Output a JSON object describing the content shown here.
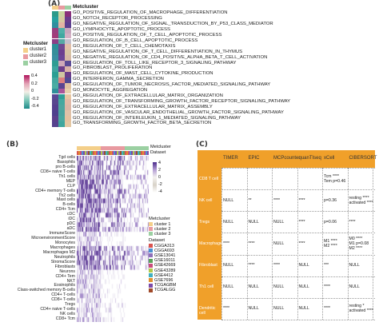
{
  "panel_a": {
    "letter": "(A)",
    "legend_title": "Metcluster",
    "legend_items": [
      {
        "label": "cluster1",
        "color": "#f4cf89"
      },
      {
        "label": "cluster2",
        "color": "#e89aa0"
      },
      {
        "label": "cluster3",
        "color": "#9bd0a2"
      }
    ],
    "scale_ticks": [
      "0.4",
      "0.2",
      "0",
      "-0.2",
      "-0.4"
    ],
    "annotation_label": "Metcluster",
    "cluster_colors": [
      "#f4cf89",
      "#e89aa0",
      "#9bd0a2"
    ],
    "go_terms": [
      "GO_POSITIVE_REGULATION_OF_MACROPHAGE_DIFFERENTIATION",
      "GO_NOTCH_RECEPTOR_PROCESSING",
      "GO_NEGATIVE_REGULATION_OF_SIGNAL_TRANSDUCTION_BY_P53_CLASS_MEDIATOR",
      "GO_LYMPHOCYTE_APOPTOTIC_PROCESS",
      "GO_POSITIVE_REGULATION_OF_T_CELL_APOPTOTIC_PROCESS",
      "GO_REGULATION_OF_B_CELL_APOPTOTIC_PROCESS",
      "GO_REGULATION_OF_T_CELL_CHEMOTAXIS",
      "GO_NEGATIVE_REGULATION_OF_T_CELL_DIFFERENTIATION_IN_THYMUS",
      "GO_NEGATIVE_REGULATION_OF_CD4_POSITIVE_ALPHA_BETA_T_CELL_ACTIVATION",
      "GO_REGULATION_OF_TOLL_LIKE_RECEPTOR_3_SIGNALING_PATHWAY",
      "GO_FIBROBLAST_PROLIFERATION",
      "GO_REGULATION_OF_MAST_CELL_CYTOKINE_PRODUCTION",
      "GO_INTERFERON_GAMMA_SECRETION",
      "GO_REGULATION_OF_TUMOR_NECROSIS_FACTOR_MEDIATED_SIGNALING_PATHWAY",
      "GO_MONOCYTE_AGGREGATION",
      "GO_REGULATION_OF_EXTRACELLULAR_MATRIX_ORGANIZATION",
      "GO_REGULATION_OF_TRANSFORMING_GROWTH_FACTOR_RECEPTOR_SIGNALING_PATHWAY",
      "GO_REGULATION_OF_EXTRACELLULAR_MATRIX_ASSEMBLY",
      "GO_REGULATION_OF_VASCULAR_ENDOTHELIAL_GROWTH_FACTOR_SIGNALING_PATHWAY",
      "GO_REGULATION_OF_INTERLEUKIN_1_MEDIATED_SIGNALING_PATHWAY",
      "GO_TRANSFORMING_GROWTH_FACTOR_BETA_SECRETION"
    ],
    "heatmap_colors": [
      [
        "#2a9a8a",
        "#c9d4a0",
        "#8a2f7a"
      ],
      [
        "#25a0a0",
        "#d8c9a0",
        "#6a3c8c"
      ],
      [
        "#2f8f9f",
        "#e2b3a4",
        "#5a3f8f"
      ],
      [
        "#9a3f7f",
        "#4fb0a8",
        "#c7a7bd"
      ],
      [
        "#a23c7a",
        "#40a8a0",
        "#d4b0c4"
      ],
      [
        "#8c3f86",
        "#55a9a4",
        "#c3c0cc"
      ],
      [
        "#2c8f98",
        "#6e4a91",
        "#e2bfa8"
      ],
      [
        "#378e9b",
        "#6c3f8f",
        "#d6c3a2"
      ],
      [
        "#3b8fa2",
        "#6a4596",
        "#d7b9a5"
      ],
      [
        "#2f9c93",
        "#cfa9b8",
        "#5b4b95"
      ],
      [
        "#3fa5a0",
        "#6d3e8a",
        "#dab3a8"
      ],
      [
        "#2a9f94",
        "#d0c6a0",
        "#6b3d8a"
      ],
      [
        "#43a8a1",
        "#db7f80",
        "#504a92"
      ],
      [
        "#4aaca2",
        "#5a4592",
        "#e0c3a2"
      ],
      [
        "#2f8f9a",
        "#a9569a",
        "#e6d0ac"
      ],
      [
        "#5a4895",
        "#2f9f97",
        "#e7c6a2"
      ],
      [
        "#58468e",
        "#44a89f",
        "#e2b9a6"
      ],
      [
        "#553f8e",
        "#4ea69f",
        "#dcb7a6"
      ],
      [
        "#4e3f8c",
        "#4aa39e",
        "#dfc1a8"
      ],
      [
        "#5b3f8c",
        "#49a8a0",
        "#e4c1a0"
      ],
      [
        "#55428e",
        "#3fa69d",
        "#e3c7a2"
      ]
    ]
  },
  "panel_b": {
    "letter": "(B)",
    "annot_labels": [
      "Metcluster",
      "Dataset"
    ],
    "scale_ticks": [
      "4",
      "2",
      "0",
      "-2",
      "-4"
    ],
    "metcluster_legend_title": "Metcluster",
    "metcluster_items": [
      {
        "label": "cluster 1",
        "color": "#f4cf89"
      },
      {
        "label": "cluster 2",
        "color": "#e89aa0"
      },
      {
        "label": "cluster 3",
        "color": "#9bd0a2"
      }
    ],
    "dataset_legend_title": "Dataset",
    "dataset_items": [
      {
        "label": "CGGA313",
        "color": "#d9534f"
      },
      {
        "label": "CGGA693",
        "color": "#4a8fd0"
      },
      {
        "label": "GSE13041",
        "color": "#8e6fb8"
      },
      {
        "label": "GSE16011",
        "color": "#5aa25a"
      },
      {
        "label": "GSE42669",
        "color": "#c94b7b"
      },
      {
        "label": "GSE43289",
        "color": "#b0c94a"
      },
      {
        "label": "GSE4412",
        "color": "#3fb0c0"
      },
      {
        "label": "GSE7696",
        "color": "#e0902e"
      },
      {
        "label": "TCGAGBM",
        "color": "#7c4aa8"
      },
      {
        "label": "TCGALGG",
        "color": "#a04a2a"
      }
    ],
    "row_labels": [
      "Tgd cells",
      "Basophils",
      "pro B-cells",
      "CD8+ naive T-cells",
      "Th1 cells",
      "MEP",
      "CLP",
      "CD4+ memory T-cells",
      "Th2 cells",
      "Mast cells",
      "B-cells",
      "CD4+ Tcm",
      "cDC",
      "iDC",
      "pDC",
      "aDC",
      "ImmuneScore",
      "MicroenvironmentScore",
      "Monocytes",
      "Macrophages",
      "Macrophages M2",
      "Neutrophils",
      "StromaScore",
      "Fibroblasts",
      "Neurons",
      "CD4+ Tem",
      "NKT",
      "Eosinophils",
      "Class-switched memory B-cells",
      "CD4+ T-cells",
      "CD8+ T-cells",
      "Tregs",
      "CD4+ naive T-cells",
      "NK cells",
      "CD8+ Tcm"
    ]
  },
  "panel_c": {
    "letter": "(C)",
    "columns": [
      "TIMER",
      "EPIC",
      "MCPcounter",
      "quanTIseq",
      "xCell",
      "CIBERSORT"
    ],
    "header_bg": "#f0a02a",
    "rows": [
      {
        "name": "CD8 T cell",
        "cells": [
          "",
          "",
          "",
          "",
          "Tcm ****\nTem p=0.46",
          ""
        ]
      },
      {
        "name": "NK cell",
        "cells": [
          "NULL",
          "**",
          "****",
          "****",
          "p=0.36",
          "resting ****\nactivated ****"
        ]
      },
      {
        "name": "Tregs",
        "cells": [
          "NULL",
          "NULL",
          "NULL",
          "****",
          "p=0.06",
          "****"
        ]
      },
      {
        "name": "Macrophage",
        "cells": [
          "****",
          "****",
          "NULL",
          "****",
          "M1 ****\nM2 ****",
          "M0 ****\nM1 p=0.08\nM2 ****"
        ]
      },
      {
        "name": "Fibroblast",
        "cells": [
          "NULL",
          "****",
          "****",
          "NULL",
          "***",
          "NULL"
        ]
      },
      {
        "name": "Th1 cell",
        "cells": [
          "NULL",
          "NULL",
          "NULL",
          "NULL",
          "****",
          "NULL"
        ]
      },
      {
        "name": "Dendritic cell",
        "cells": [
          "****",
          "NULL",
          "NULL",
          "NULL",
          "****",
          "resting *\nactivated ****"
        ]
      }
    ]
  }
}
